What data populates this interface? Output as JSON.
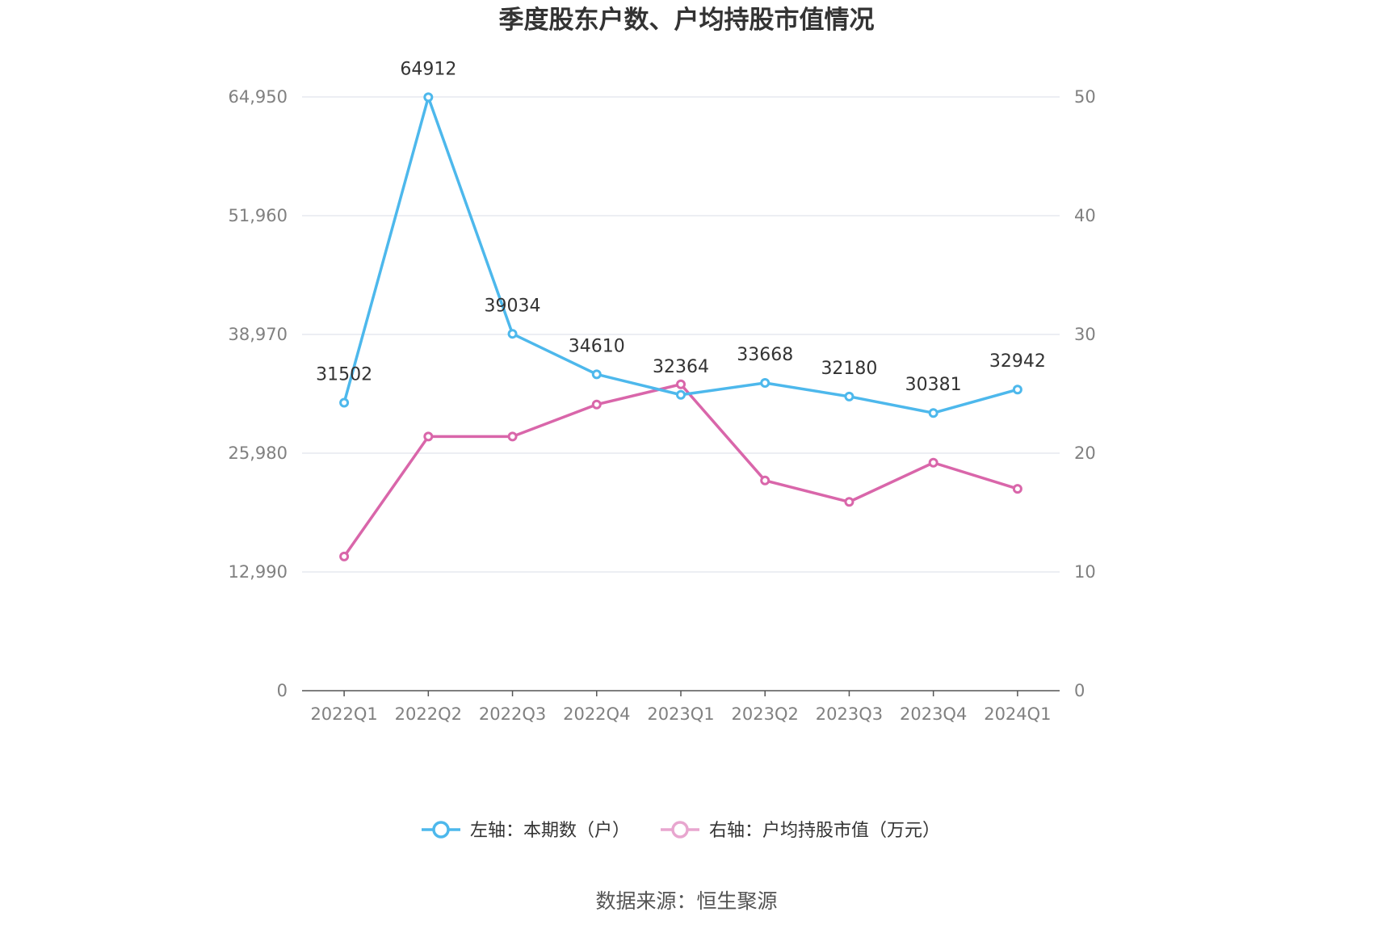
{
  "chart_data": {
    "type": "line",
    "title": "季度股东户数、户均持股市值情况",
    "categories": [
      "2022Q1",
      "2022Q2",
      "2022Q3",
      "2022Q4",
      "2023Q1",
      "2023Q2",
      "2023Q3",
      "2023Q4",
      "2024Q1"
    ],
    "left_axis": {
      "ticks": [
        "0",
        "12,990",
        "25,980",
        "38,970",
        "51,960",
        "64,950"
      ],
      "ylim": [
        0,
        64950
      ]
    },
    "right_axis": {
      "ticks": [
        "0",
        "10",
        "20",
        "30",
        "40",
        "50"
      ],
      "ylim": [
        0,
        50
      ]
    },
    "grid": true,
    "legend_position": "bottom",
    "series": [
      {
        "name": "左轴：本期数（户）",
        "axis": "left",
        "color": "#4db8ec",
        "values": [
          31502,
          64912,
          39034,
          34610,
          32364,
          33668,
          32180,
          30381,
          32942
        ],
        "labels": [
          "31502",
          "64912",
          "39034",
          "34610",
          "32364",
          "33668",
          "32180",
          "30381",
          "32942"
        ]
      },
      {
        "name": "右轴：户均持股市值（万元）",
        "axis": "right",
        "color": "#d966aa",
        "values": [
          11.3,
          21.4,
          21.4,
          24.1,
          25.8,
          17.7,
          15.9,
          19.2,
          17.0
        ]
      }
    ],
    "legend": [
      {
        "label": "左轴：本期数（户）",
        "color": "#4db8ec"
      },
      {
        "label": "右轴：户均持股市值（万元）",
        "color": "#e8a6cf"
      }
    ],
    "source": "数据来源：恒生聚源"
  }
}
